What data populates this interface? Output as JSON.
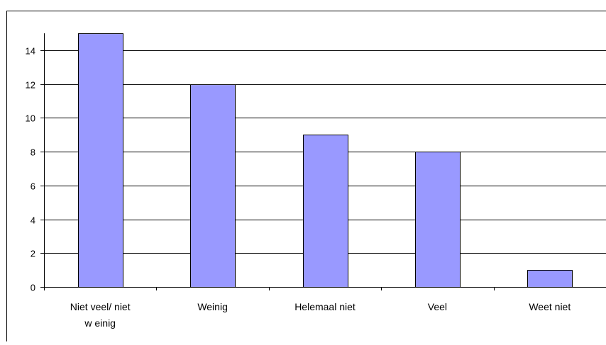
{
  "chart_data": {
    "type": "bar",
    "categories": [
      "Niet veel/ niet w einig",
      "Weinig",
      "Helemaal niet",
      "Veel",
      "Weet niet"
    ],
    "category_lines": [
      [
        "Niet veel/ niet",
        "w einig"
      ],
      [
        "Weinig"
      ],
      [
        "Helemaal niet"
      ],
      [
        "Veel"
      ],
      [
        "Weet niet"
      ]
    ],
    "values": [
      15,
      12,
      9,
      8,
      1
    ],
    "ylim": [
      0,
      15
    ],
    "yticks": [
      0,
      2,
      4,
      6,
      8,
      10,
      12,
      14
    ],
    "ytick_labels": [
      "0",
      "2",
      "4",
      "6",
      "8",
      "10",
      "12",
      "14"
    ],
    "grid": true,
    "bar_color": "#9999ff",
    "bar_stroke": "#000000",
    "gridline_color": "#000000"
  }
}
